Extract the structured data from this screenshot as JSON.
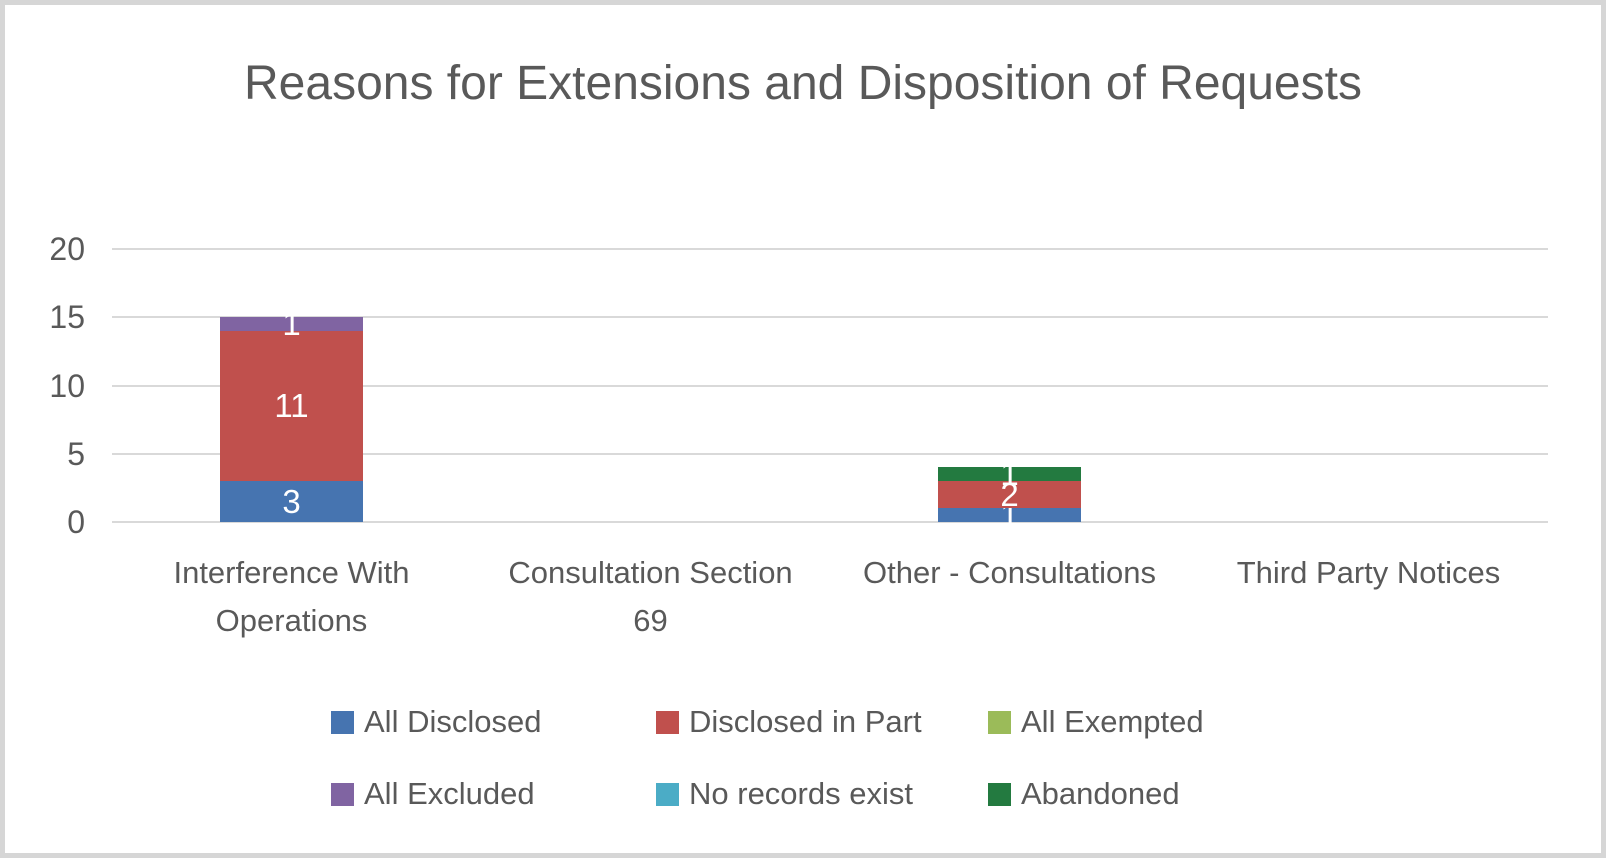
{
  "title": "Reasons for Extensions and Disposition of Requests",
  "chart_data": {
    "type": "bar",
    "stacked": true,
    "title": "Reasons for Extensions and Disposition of Requests",
    "categories": [
      "Interference With Operations",
      "Consultation Section 69",
      "Other - Consultations",
      "Third Party Notices"
    ],
    "x_tick_labels": [
      "Interference With\nOperations",
      "Consultation Section\n69",
      "Other - Consultations",
      "Third Party Notices"
    ],
    "series": [
      {
        "name": "All Disclosed",
        "color": "#4674b0",
        "values": [
          3,
          0,
          1,
          0
        ]
      },
      {
        "name": "Disclosed in Part",
        "color": "#c0504d",
        "values": [
          11,
          0,
          2,
          0
        ]
      },
      {
        "name": "All Exempted",
        "color": "#9bbb59",
        "values": [
          0,
          0,
          0,
          0
        ]
      },
      {
        "name": "All Excluded",
        "color": "#8064a2",
        "values": [
          1,
          0,
          0,
          0
        ]
      },
      {
        "name": "No records exist",
        "color": "#4bacc6",
        "values": [
          0,
          0,
          0,
          0
        ]
      },
      {
        "name": "Abandoned",
        "color": "#237a40",
        "values": [
          0,
          0,
          1,
          0
        ]
      }
    ],
    "data_labels": {
      "shown_for_nonzero_only": true,
      "color": "#ffffff",
      "visible_values": {
        "Interference With Operations": {
          "All Disclosed": 3,
          "Disclosed in Part": 11,
          "All Excluded": 1
        },
        "Other - Consultations": {
          "All Disclosed": 1,
          "Disclosed in Part": 2,
          "Abandoned": 1
        }
      }
    },
    "y_axis": {
      "min": 0,
      "max": 20,
      "tick_interval": 5,
      "ticks": [
        0,
        5,
        10,
        15,
        20
      ]
    },
    "grid": "horizontal",
    "legend_position": "bottom-two-rows"
  },
  "colors": {
    "text": "#595959",
    "gridline": "#d9d9d9",
    "frame_border": "#d6d6d6",
    "background": "#ffffff",
    "data_label": "#ffffff"
  }
}
